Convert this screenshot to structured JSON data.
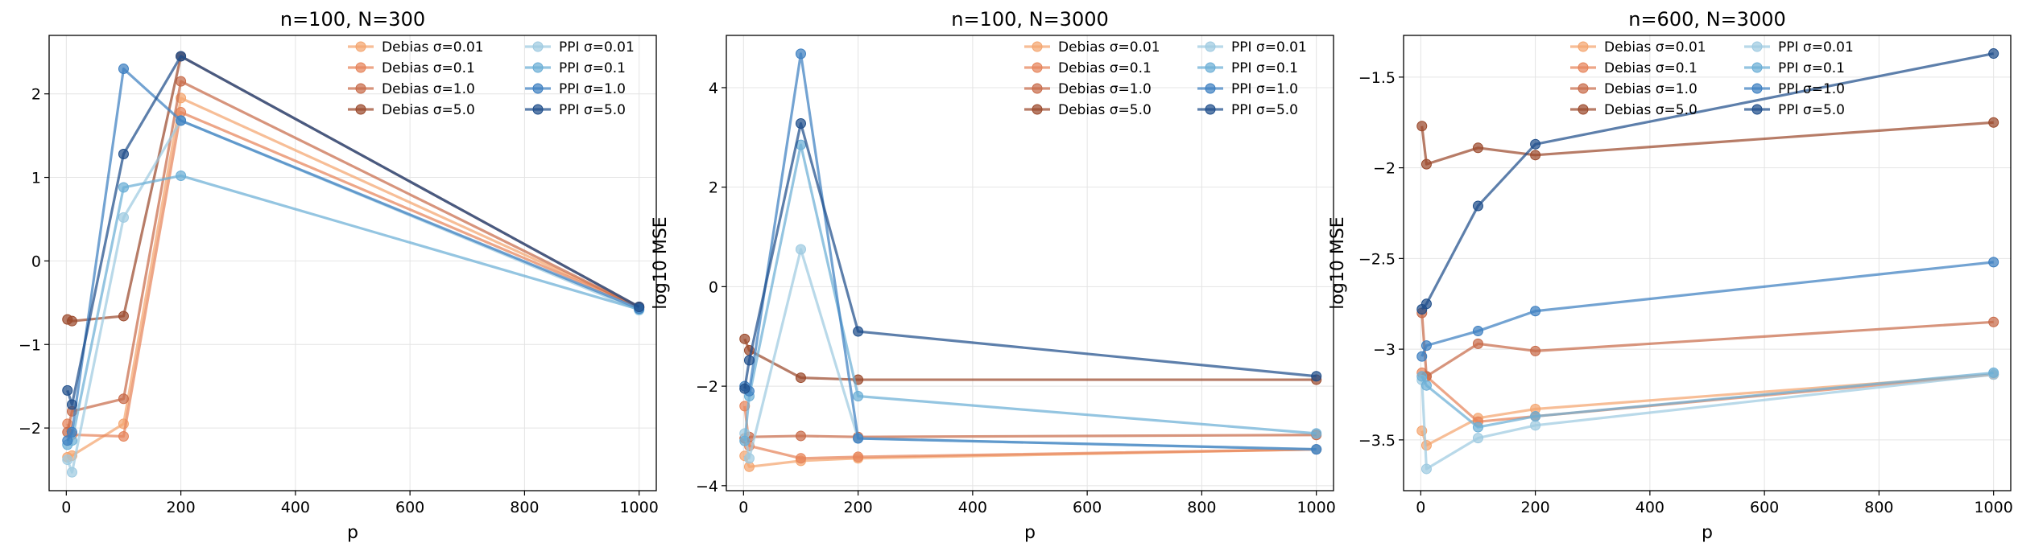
{
  "chart_data": [
    {
      "type": "line",
      "title": "n=100, N=300",
      "xlabel": "p",
      "ylabel": "log10 MSE",
      "xlim": [
        -30,
        1030
      ],
      "ylim": [
        -2.75,
        2.7
      ],
      "xticks": [
        0,
        200,
        400,
        600,
        800,
        1000
      ],
      "yticks": [
        -2,
        -1,
        0,
        1,
        2
      ],
      "grid": true,
      "legend_position": "top-right",
      "series": [
        {
          "name": "Debias σ=0.01",
          "color": "#f4a56f",
          "x": [
            2,
            10,
            100,
            200,
            1000
          ],
          "y": [
            -2.35,
            -2.33,
            -1.95,
            1.95,
            -0.55
          ]
        },
        {
          "name": "Debias σ=0.1",
          "color": "#e6845a",
          "x": [
            2,
            10,
            100,
            200,
            1000
          ],
          "y": [
            -1.95,
            -2.08,
            -2.1,
            1.78,
            -0.55
          ]
        },
        {
          "name": "Debias σ=1.0",
          "color": "#c86b4a",
          "x": [
            2,
            10,
            100,
            200,
            1000
          ],
          "y": [
            -2.05,
            -1.8,
            -1.65,
            2.15,
            -0.56
          ]
        },
        {
          "name": "Debias σ=5.0",
          "color": "#9b4a2c",
          "x": [
            2,
            10,
            100,
            200,
            1000
          ],
          "y": [
            -0.7,
            -0.72,
            -0.66,
            2.45,
            -0.55
          ]
        },
        {
          "name": "PPI σ=0.01",
          "color": "#9ecae1",
          "x": [
            2,
            10,
            100,
            200,
            1000
          ],
          "y": [
            -2.38,
            -2.53,
            0.52,
            1.68,
            -0.59
          ]
        },
        {
          "name": "PPI σ=0.1",
          "color": "#6baed6",
          "x": [
            2,
            10,
            100,
            200,
            1000
          ],
          "y": [
            -2.2,
            -2.15,
            0.88,
            1.02,
            -0.58
          ]
        },
        {
          "name": "PPI σ=1.0",
          "color": "#3d7fc1",
          "x": [
            2,
            10,
            100,
            200,
            1000
          ],
          "y": [
            -2.15,
            -2.05,
            2.3,
            1.68,
            -0.57
          ]
        },
        {
          "name": "PPI σ=5.0",
          "color": "#1f4e8a",
          "x": [
            2,
            10,
            100,
            200,
            1000
          ],
          "y": [
            -1.55,
            -1.72,
            1.28,
            2.45,
            -0.55
          ]
        }
      ]
    },
    {
      "type": "line",
      "title": "n=100, N=3000",
      "xlabel": "p",
      "ylabel": "log10 MSE",
      "xlim": [
        -30,
        1030
      ],
      "ylim": [
        -4.1,
        5.05
      ],
      "xticks": [
        0,
        200,
        400,
        600,
        800,
        1000
      ],
      "yticks": [
        -4,
        -2,
        0,
        2,
        4
      ],
      "grid": true,
      "legend_position": "top-right",
      "series": [
        {
          "name": "Debias σ=0.01",
          "color": "#f4a56f",
          "x": [
            2,
            10,
            100,
            200,
            1000
          ],
          "y": [
            -3.4,
            -3.62,
            -3.5,
            -3.45,
            -3.27
          ]
        },
        {
          "name": "Debias σ=0.1",
          "color": "#e6845a",
          "x": [
            2,
            10,
            100,
            200,
            1000
          ],
          "y": [
            -2.4,
            -3.2,
            -3.45,
            -3.42,
            -3.27
          ]
        },
        {
          "name": "Debias σ=1.0",
          "color": "#c86b4a",
          "x": [
            2,
            10,
            100,
            200,
            1000
          ],
          "y": [
            -3.05,
            -3.02,
            -3.0,
            -3.02,
            -2.98
          ]
        },
        {
          "name": "Debias σ=5.0",
          "color": "#9b4a2c",
          "x": [
            2,
            10,
            100,
            200,
            1000
          ],
          "y": [
            -1.05,
            -1.28,
            -1.83,
            -1.87,
            -1.87
          ]
        },
        {
          "name": "PPI σ=0.01",
          "color": "#9ecae1",
          "x": [
            2,
            10,
            100,
            200,
            1000
          ],
          "y": [
            -2.95,
            -3.45,
            0.75,
            -3.05,
            -3.27
          ]
        },
        {
          "name": "PPI σ=0.1",
          "color": "#6baed6",
          "x": [
            2,
            10,
            100,
            200,
            1000
          ],
          "y": [
            -3.1,
            -2.2,
            2.85,
            -2.2,
            -2.95
          ]
        },
        {
          "name": "PPI σ=1.0",
          "color": "#3d7fc1",
          "x": [
            2,
            10,
            100,
            200,
            1000
          ],
          "y": [
            -2.0,
            -2.1,
            4.68,
            -3.05,
            -3.27
          ]
        },
        {
          "name": "PPI σ=5.0",
          "color": "#1f4e8a",
          "x": [
            2,
            10,
            100,
            200,
            1000
          ],
          "y": [
            -2.05,
            -1.48,
            3.28,
            -0.9,
            -1.8
          ]
        }
      ]
    },
    {
      "type": "line",
      "title": "n=600, N=3000",
      "xlabel": "p",
      "ylabel": "log10 MSE",
      "xlim": [
        -30,
        1030
      ],
      "ylim": [
        -3.78,
        -1.27
      ],
      "xticks": [
        0,
        200,
        400,
        600,
        800,
        1000
      ],
      "yticks": [
        -3.5,
        -3.0,
        -2.5,
        -2.0,
        -1.5
      ],
      "grid": true,
      "legend_position": "top-center",
      "series": [
        {
          "name": "Debias σ=0.01",
          "color": "#f4a56f",
          "x": [
            2,
            10,
            100,
            200,
            1000
          ],
          "y": [
            -3.45,
            -3.53,
            -3.38,
            -3.33,
            -3.14
          ]
        },
        {
          "name": "Debias σ=0.1",
          "color": "#e6845a",
          "x": [
            2,
            10,
            100,
            200,
            1000
          ],
          "y": [
            -3.13,
            -3.15,
            -3.4,
            -3.37,
            -3.14
          ]
        },
        {
          "name": "Debias σ=1.0",
          "color": "#c86b4a",
          "x": [
            2,
            10,
            100,
            200,
            1000
          ],
          "y": [
            -2.8,
            -3.15,
            -2.97,
            -3.01,
            -2.85
          ]
        },
        {
          "name": "Debias σ=5.0",
          "color": "#9b4a2c",
          "x": [
            2,
            10,
            100,
            200,
            1000
          ],
          "y": [
            -1.77,
            -1.98,
            -1.89,
            -1.93,
            -1.75
          ]
        },
        {
          "name": "PPI σ=0.01",
          "color": "#9ecae1",
          "x": [
            2,
            10,
            100,
            200,
            1000
          ],
          "y": [
            -3.17,
            -3.66,
            -3.49,
            -3.42,
            -3.14
          ]
        },
        {
          "name": "PPI σ=0.1",
          "color": "#6baed6",
          "x": [
            2,
            10,
            100,
            200,
            1000
          ],
          "y": [
            -3.15,
            -3.2,
            -3.43,
            -3.37,
            -3.13
          ]
        },
        {
          "name": "PPI σ=1.0",
          "color": "#3d7fc1",
          "x": [
            2,
            10,
            100,
            200,
            1000
          ],
          "y": [
            -3.04,
            -2.98,
            -2.9,
            -2.79,
            -2.52
          ]
        },
        {
          "name": "PPI σ=5.0",
          "color": "#1f4e8a",
          "x": [
            2,
            10,
            100,
            200,
            1000
          ],
          "y": [
            -2.78,
            -2.75,
            -2.21,
            -1.87,
            -1.37
          ]
        }
      ]
    }
  ]
}
